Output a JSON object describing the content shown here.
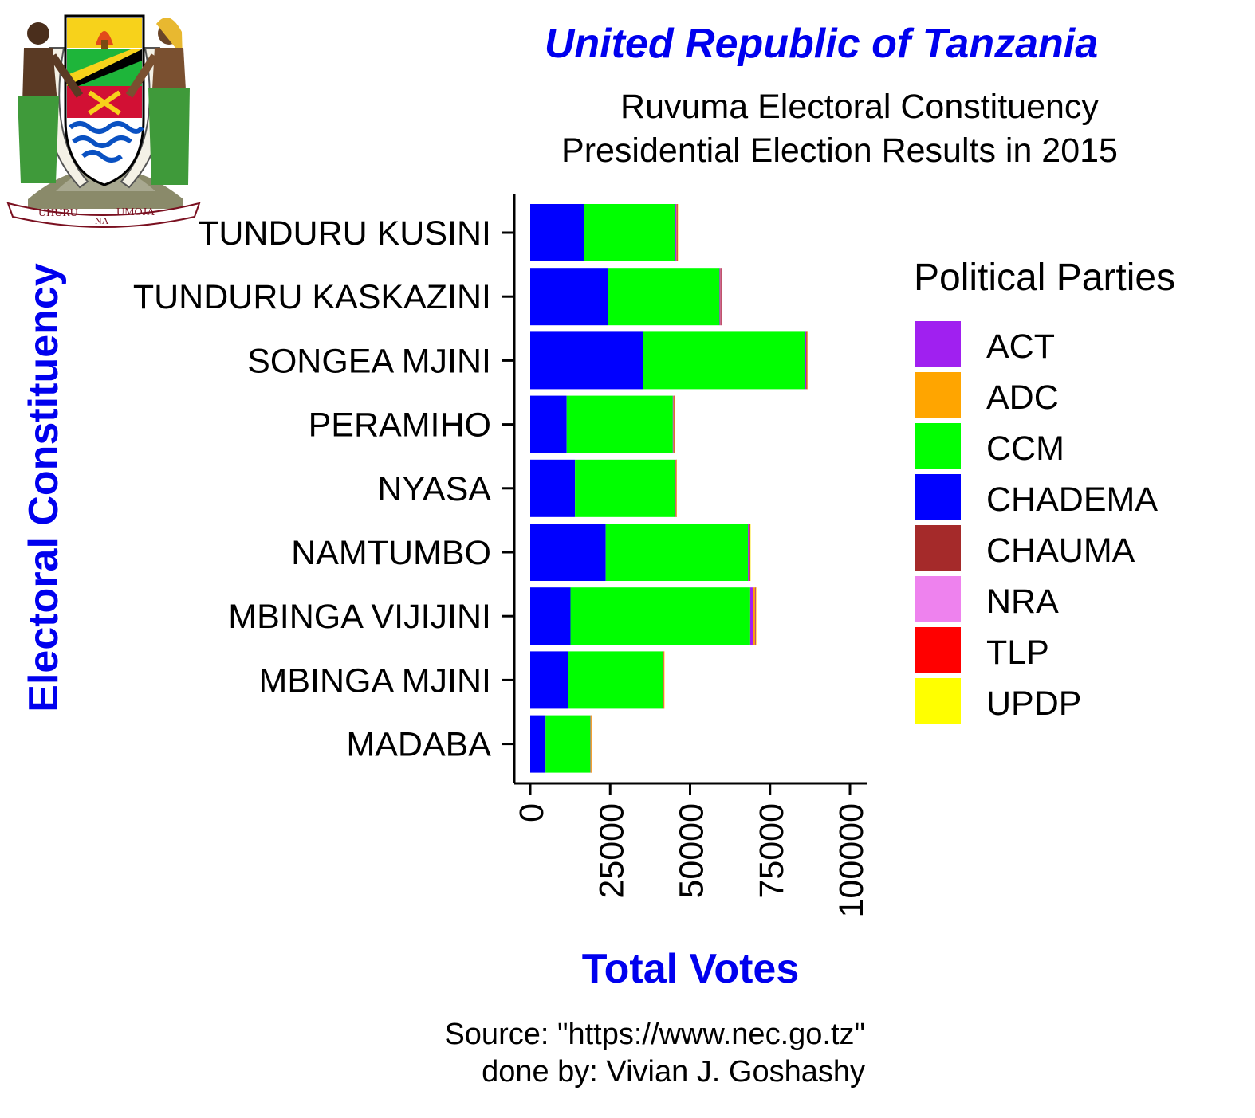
{
  "chart_data": {
    "type": "bar",
    "orientation": "horizontal",
    "stacked": true,
    "title": "United Republic of Tanzania",
    "subtitle": [
      "Ruvuma Electoral Constituency",
      "Presidential Election Results in 2015"
    ],
    "xlabel": "Total Votes",
    "ylabel": "Electoral Constituency",
    "xlim": [
      0,
      100000
    ],
    "x_ticks": [
      "0",
      "25000",
      "50000",
      "75000",
      "100000"
    ],
    "x_tick_values": [
      0,
      25000,
      50000,
      75000,
      100000
    ],
    "grid": false,
    "legend_title": "Political Parties",
    "legend_position": "right",
    "categories": [
      "TUNDURU KUSINI",
      "TUNDURU KASKAZINI",
      "SONGEA MJINI",
      "PERAMIHO",
      "NYASA",
      "NAMTUMBO",
      "MBINGA VIJIJINI",
      "MBINGA MJINI",
      "MADABA"
    ],
    "series": [
      {
        "name": "CHADEMA",
        "color": "#0000FF",
        "values": [
          16800,
          24200,
          35300,
          11400,
          14000,
          23600,
          12600,
          11900,
          4800
        ]
      },
      {
        "name": "CCM",
        "color": "#00FF00",
        "values": [
          28600,
          35000,
          50700,
          33200,
          31300,
          44500,
          56200,
          29500,
          14000
        ]
      },
      {
        "name": "ACT",
        "color": "#A020F0",
        "values": [
          300,
          300,
          300,
          200,
          200,
          300,
          800,
          200,
          100
        ]
      },
      {
        "name": "ADC",
        "color": "#FFA500",
        "values": [
          100,
          100,
          100,
          100,
          100,
          100,
          700,
          100,
          50
        ]
      },
      {
        "name": "CHAUMA",
        "color": "#A52A2A",
        "values": [
          200,
          200,
          200,
          100,
          100,
          200,
          200,
          100,
          50
        ]
      },
      {
        "name": "NRA",
        "color": "#EE82EE",
        "values": [
          50,
          50,
          50,
          30,
          30,
          50,
          50,
          30,
          20
        ]
      },
      {
        "name": "TLP",
        "color": "#FF0000",
        "values": [
          50,
          50,
          50,
          30,
          30,
          50,
          50,
          30,
          20
        ]
      },
      {
        "name": "UPDP",
        "color": "#FFFF00",
        "values": [
          50,
          50,
          50,
          30,
          30,
          50,
          50,
          30,
          20
        ]
      }
    ],
    "legend_order": [
      "ACT",
      "ADC",
      "CCM",
      "CHADEMA",
      "CHAUMA",
      "NRA",
      "TLP",
      "UPDP"
    ]
  },
  "caption": [
    "Source: \"https://www.nec.go.tz\"",
    "done by: Vivian J. Goshashy"
  ],
  "emblem": {
    "name": "Coat of arms of Tanzania",
    "motto_left": "UHURU",
    "motto_center": "NA",
    "motto_right": "UMOJA"
  },
  "colors": {
    "title": "#0000EE",
    "axis_titles": "#0000EE",
    "axis_line": "#000000"
  }
}
